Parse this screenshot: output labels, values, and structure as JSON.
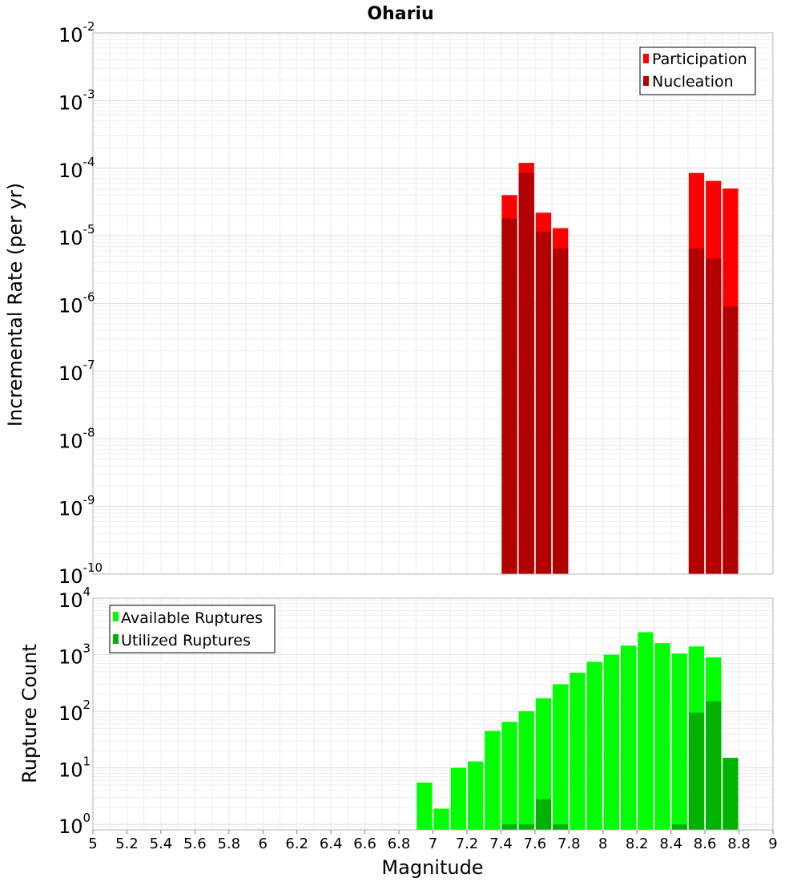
{
  "chart_data": [
    {
      "type": "bar",
      "title": "Ohariu",
      "ylabel": "Incremental Rate (per yr)",
      "xlabel": "",
      "xlim": [
        5,
        9
      ],
      "ylim": [
        1e-10,
        0.01
      ],
      "yscale": "log",
      "grid": true,
      "legend": "top-right",
      "bin_width": 0.1,
      "ytick_exponents": [
        "-2",
        "-3",
        "-4",
        "-5",
        "-6",
        "-7",
        "-8",
        "-9",
        "-10"
      ],
      "series": [
        {
          "name": "Participation",
          "color": "#ff0000",
          "x": [
            7.45,
            7.55,
            7.65,
            7.75,
            8.55,
            8.65,
            8.75
          ],
          "values": [
            4e-05,
            0.00012,
            2.2e-05,
            1.3e-05,
            8.5e-05,
            6.5e-05,
            5e-05
          ]
        },
        {
          "name": "Nucleation",
          "color": "#b20000",
          "x": [
            7.45,
            7.55,
            7.65,
            7.75,
            8.55,
            8.65,
            8.75
          ],
          "values": [
            1.8e-05,
            8.5e-05,
            1.15e-05,
            6.5e-06,
            6.5e-06,
            4.6e-06,
            9e-07
          ]
        }
      ]
    },
    {
      "type": "bar",
      "title": "",
      "ylabel": "Rupture Count",
      "xlabel": "Magnitude",
      "xlim": [
        5,
        9
      ],
      "ylim": [
        0.8,
        10000
      ],
      "yscale": "log",
      "grid": true,
      "legend": "top-left",
      "bin_width": 0.1,
      "xticks": [
        "5",
        "5.2",
        "5.4",
        "5.6",
        "5.8",
        "6",
        "6.2",
        "6.4",
        "6.6",
        "6.8",
        "7",
        "7.2",
        "7.4",
        "7.6",
        "7.8",
        "8",
        "8.2",
        "8.4",
        "8.6",
        "8.8",
        "9"
      ],
      "ytick_exponents": [
        "4",
        "3",
        "2",
        "1",
        "0"
      ],
      "series": [
        {
          "name": "Available Ruptures",
          "color": "#00ff00",
          "x": [
            6.95,
            7.05,
            7.15,
            7.25,
            7.35,
            7.45,
            7.55,
            7.65,
            7.75,
            7.85,
            7.95,
            8.05,
            8.15,
            8.25,
            8.35,
            8.45,
            8.55,
            8.65,
            8.75
          ],
          "values": [
            5.5,
            1.9,
            10,
            13,
            45,
            65,
            100,
            170,
            300,
            480,
            750,
            1000,
            1450,
            2500,
            1600,
            1050,
            1400,
            900,
            15
          ]
        },
        {
          "name": "Utilized Ruptures",
          "color": "#00b200",
          "x": [
            7.45,
            7.55,
            7.65,
            7.75,
            8.45,
            8.55,
            8.65,
            8.75
          ],
          "values": [
            1,
            1,
            2.8,
            1,
            1,
            95,
            150,
            15
          ]
        }
      ]
    }
  ]
}
